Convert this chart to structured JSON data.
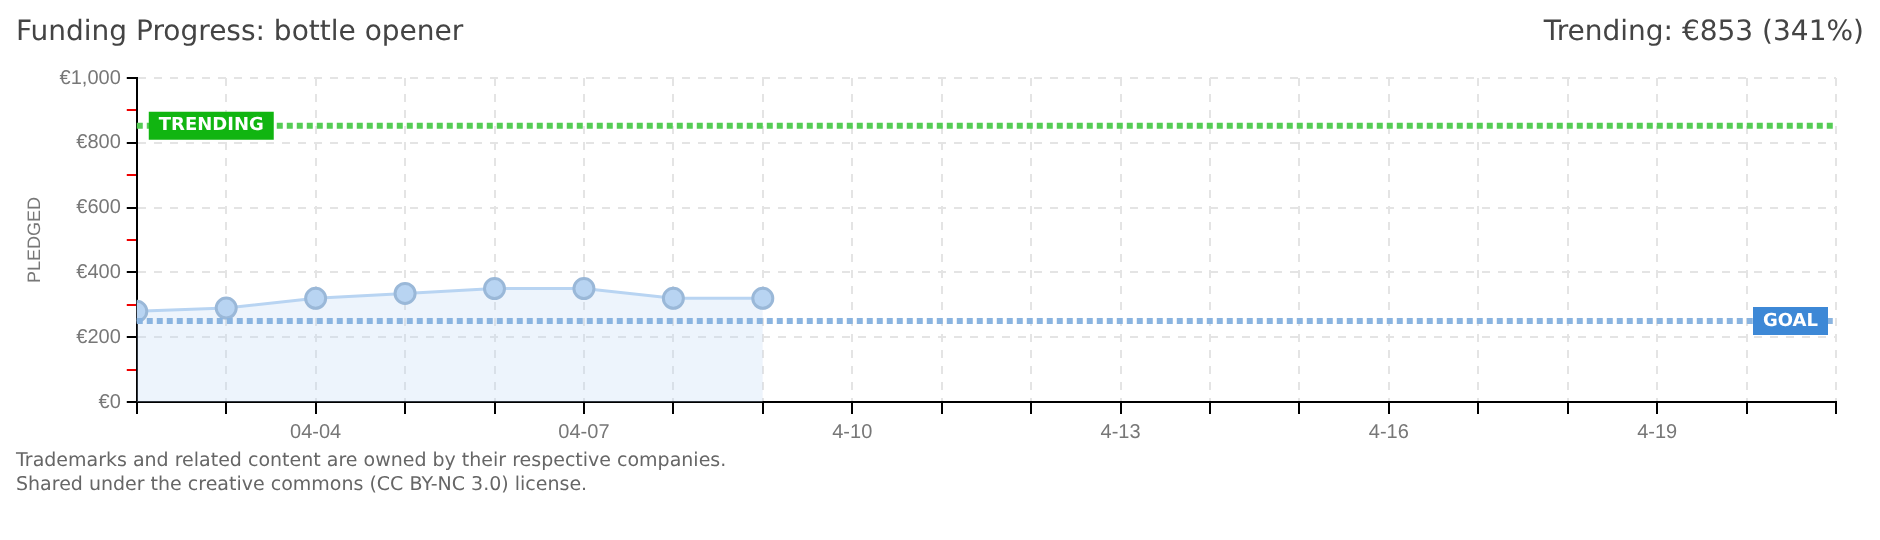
{
  "chart_data": {
    "type": "area",
    "title": "Funding Progress: bottle opener",
    "ylabel": "PLEDGED",
    "annotations": [
      "Trending: €853 (341%)",
      "Trademarks and related content are owned by their respective companies.",
      "Shared under the creative commons (CC BY-NC 3.0) license."
    ],
    "x": [
      "--04-02",
      "--04-03",
      "--04-04",
      "--04-05",
      "--04-06",
      "--04-07",
      "--04-08",
      "--04-09"
    ],
    "series": [
      {
        "color": "#b8d4f2",
        "values": [
          280,
          290,
          320,
          335,
          350,
          350,
          320,
          320
        ]
      }
    ],
    "xlim": [
      "--04-02",
      "--04-21"
    ],
    "xticks": [
      {
        "value": "--04-02",
        "label": null
      },
      {
        "value": "--04-03",
        "label": null
      },
      {
        "value": "--04-04",
        "label": "04-04"
      },
      {
        "value": "--04-05",
        "label": null
      },
      {
        "value": "--04-06",
        "label": null
      },
      {
        "value": "--04-07",
        "label": "04-07"
      },
      {
        "value": "--04-08",
        "label": null
      },
      {
        "value": "--04-09",
        "label": null
      },
      {
        "value": "--04-10",
        "label": "4-10"
      },
      {
        "value": "--04-11",
        "label": null
      },
      {
        "value": "--04-12",
        "label": null
      },
      {
        "value": "--04-13",
        "label": "4-13"
      },
      {
        "value": "--04-14",
        "label": null
      },
      {
        "value": "--04-15",
        "label": null
      },
      {
        "value": "--04-16",
        "label": "4-16"
      },
      {
        "value": "--04-17",
        "label": null
      },
      {
        "value": "--04-18",
        "label": null
      },
      {
        "value": "--04-19",
        "label": "4-19"
      },
      {
        "value": "--04-20",
        "label": null
      },
      {
        "value": "--04-21",
        "label": null
      }
    ],
    "ylim": [
      0,
      1000
    ],
    "yticks": [
      {
        "value": 0,
        "label": "€0"
      },
      {
        "value": 100,
        "label": null
      },
      {
        "value": 200,
        "label": "€200"
      },
      {
        "value": 300,
        "label": null
      },
      {
        "value": 400,
        "label": "€400"
      },
      {
        "value": 500,
        "label": null
      },
      {
        "value": 600,
        "label": "€600"
      },
      {
        "value": 700,
        "label": null
      },
      {
        "value": 800,
        "label": "€800"
      },
      {
        "value": 900,
        "label": null
      },
      {
        "value": 1000,
        "label": "€1,000"
      }
    ],
    "ref_lines": [
      {
        "axis": "y",
        "value": 853,
        "label": "TRENDING",
        "color": "#55cc55",
        "line_style": "dotted"
      },
      {
        "axis": "y",
        "value": 250,
        "label": "GOAL",
        "color": "#8ab4e0",
        "line_style": "dotted"
      }
    ],
    "grid": true,
    "legend": false,
    "marker": "circle",
    "line_style": "solid"
  }
}
